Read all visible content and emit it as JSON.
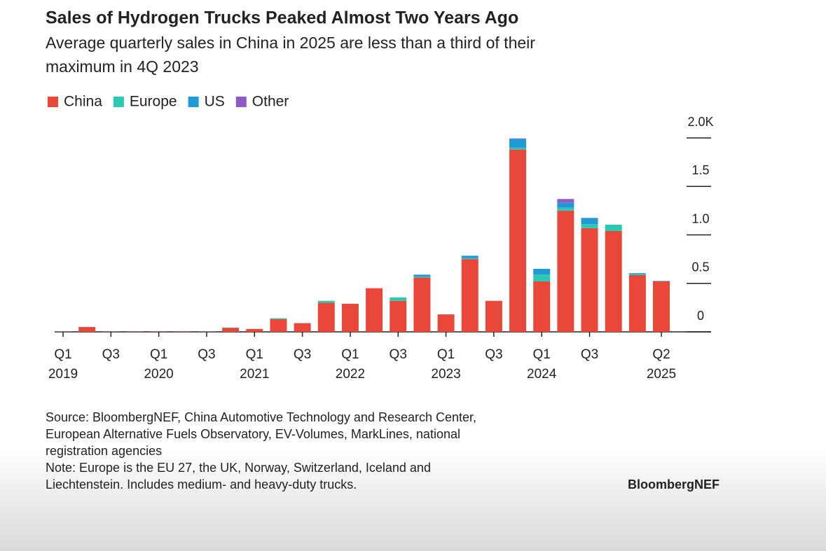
{
  "chart_data": {
    "type": "stacked_bar",
    "title": "Sales of Hydrogen Trucks Peaked Almost Two Years Ago",
    "subtitle": [
      "Average quarterly sales in China in 2025 are less than a third of their",
      "maximum in 4Q 2023"
    ],
    "categories": [
      "Q1",
      null,
      "Q3",
      null,
      "Q1",
      null,
      "Q3",
      null,
      "Q1",
      null,
      "Q3",
      null,
      "Q1",
      null,
      "Q3",
      null,
      "Q1",
      null,
      "Q3",
      null,
      "Q1",
      null,
      "Q3",
      null,
      null,
      "Q2"
    ],
    "years": [
      "2019",
      null,
      null,
      null,
      "2020",
      null,
      null,
      null,
      "2021",
      null,
      null,
      null,
      "2022",
      null,
      null,
      null,
      "2023",
      null,
      null,
      null,
      "2024",
      null,
      null,
      null,
      null,
      "2025"
    ],
    "series": [
      {
        "name": "China",
        "color": "#e8473a",
        "values": [
          0.003,
          0.05,
          0.003,
          0.003,
          0.003,
          0.005,
          0.003,
          0.04,
          0.03,
          0.13,
          0.09,
          0.3,
          0.29,
          0.45,
          0.32,
          0.56,
          0.18,
          0.75,
          0.32,
          1.88,
          0.52,
          1.25,
          1.07,
          1.04,
          0.585,
          0.52
        ]
      },
      {
        "name": "Europe",
        "color": "#2bc9b4",
        "values": [
          0,
          0,
          0,
          0,
          0,
          0,
          0,
          0.005,
          0,
          0.01,
          0,
          0.02,
          0,
          0,
          0.035,
          0.01,
          0,
          0.01,
          0,
          0.02,
          0.07,
          0.03,
          0.04,
          0.065,
          0.01,
          0
        ]
      },
      {
        "name": "US",
        "color": "#1f9ad6",
        "values": [
          0,
          0,
          0,
          0,
          0,
          0,
          0,
          0,
          0,
          0,
          0,
          0,
          0,
          0,
          0,
          0.02,
          0,
          0.025,
          0,
          0.09,
          0.06,
          0.05,
          0.065,
          0,
          0.01,
          0.005
        ]
      },
      {
        "name": "Other",
        "color": "#8e5bc6",
        "values": [
          0,
          0,
          0,
          0,
          0,
          0,
          0,
          0,
          0,
          0,
          0,
          0,
          0,
          0,
          0,
          0,
          0,
          0,
          0,
          0.005,
          0,
          0.04,
          0,
          0,
          0,
          0
        ]
      }
    ],
    "ylim": [
      0,
      2
    ],
    "yticks": [
      0,
      0.5,
      {
        "value": 1,
        "label": "1.0"
      },
      1.5,
      {
        "value": 2,
        "label": "2.0K"
      }
    ],
    "source": [
      "Source: BloombergNEF, China Automotive Technology and Research Center,",
      "European Alternative Fuels Observatory, EV-Volumes, MarkLines, national",
      "registration agencies",
      "Note: Europe is the EU 27, the UK, Norway, Switzerland, Iceland and",
      "Liechtenstein. Includes medium- and heavy-duty trucks."
    ],
    "logo": "BloombergNEF"
  }
}
